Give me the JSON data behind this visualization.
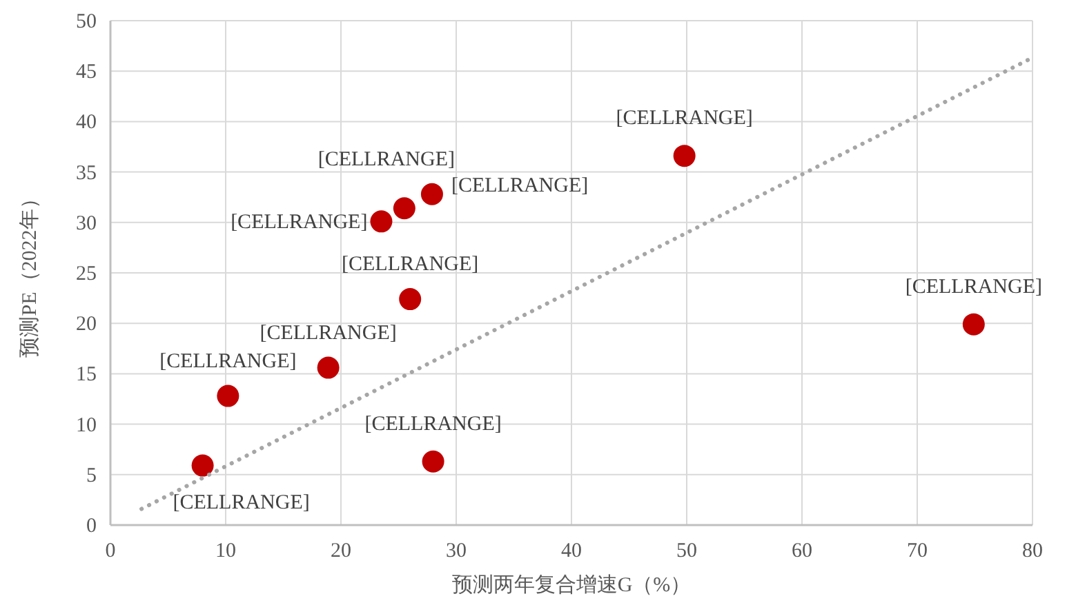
{
  "chart_data": {
    "type": "scatter",
    "xlabel": "预测两年复合增速G（%）",
    "ylabel": "预测PE（2022年）",
    "xlim": [
      0,
      80
    ],
    "ylim": [
      0,
      50
    ],
    "xticks": [
      0,
      10,
      20,
      30,
      40,
      50,
      60,
      70,
      80
    ],
    "yticks": [
      0,
      5,
      10,
      15,
      20,
      25,
      30,
      35,
      40,
      45,
      50
    ],
    "grid": true,
    "marker": "circle",
    "series": [
      {
        "color": "#c00000",
        "x": [
          8.0,
          10.2,
          18.9,
          23.5,
          25.5,
          27.9,
          26.0,
          28.0,
          49.8,
          74.9
        ],
        "values": [
          5.9,
          12.8,
          15.6,
          30.1,
          31.4,
          32.8,
          22.4,
          6.3,
          36.6,
          19.9
        ]
      },
      {
        "type": "line",
        "color": "#a6a6a6",
        "line_style": "dotted",
        "marker": "none",
        "x": [
          2.7,
          79.6
        ],
        "values": [
          1.6,
          46.1
        ]
      }
    ],
    "annotations": [
      {
        "text": "[CELLRANGE]",
        "x": 8.0,
        "y": 5.9
      },
      {
        "text": "[CELLRANGE]",
        "x": 10.2,
        "y": 12.8
      },
      {
        "text": "[CELLRANGE]",
        "x": 18.9,
        "y": 15.6
      },
      {
        "text": "[CELLRANGE]",
        "x": 23.5,
        "y": 30.1
      },
      {
        "text": "[CELLRANGE]",
        "x": 25.5,
        "y": 31.4
      },
      {
        "text": "[CELLRANGE]",
        "x": 27.9,
        "y": 32.8
      },
      {
        "text": "[CELLRANGE]",
        "x": 26.0,
        "y": 22.4
      },
      {
        "text": "[CELLRANGE]",
        "x": 28.0,
        "y": 6.3
      },
      {
        "text": "[CELLRANGE]",
        "x": 49.8,
        "y": 36.6
      },
      {
        "text": "[CELLRANGE]",
        "x": 74.9,
        "y": 19.9
      }
    ]
  }
}
